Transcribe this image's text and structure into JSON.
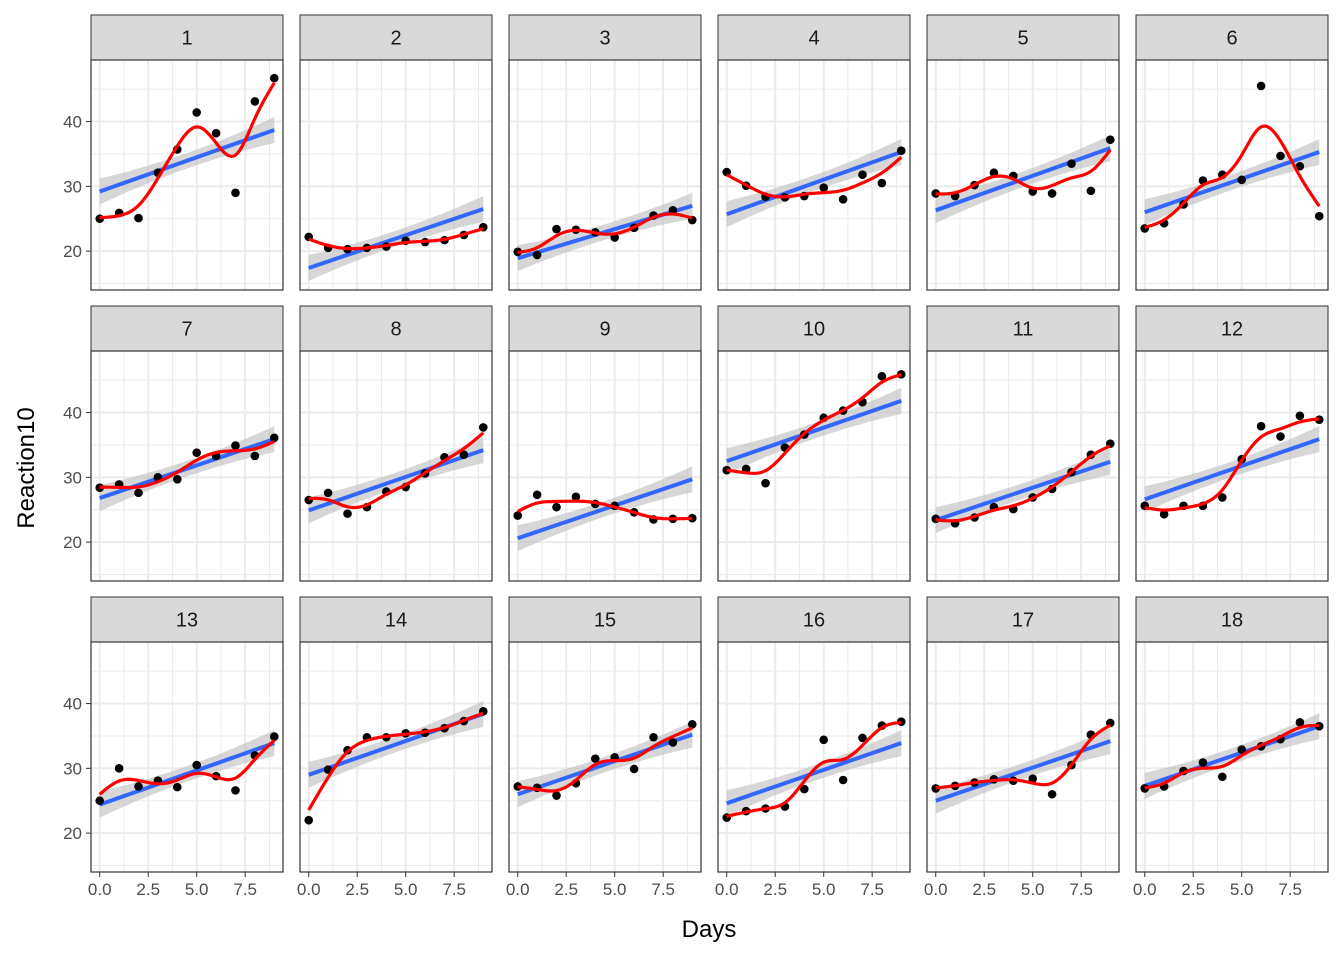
{
  "chart_data": {
    "type": "scatter",
    "xlabel": "Days",
    "ylabel": "Reaction10",
    "xlim": [
      -0.45,
      9.45
    ],
    "ylim": [
      14.0,
      49.5
    ],
    "x_ticks": [
      0,
      2.5,
      5,
      7.5
    ],
    "x_tick_labels": [
      "0.0",
      "2.5",
      "5.0",
      "7.5"
    ],
    "y_ticks": [
      20,
      30,
      40
    ],
    "y_tick_labels": [
      "20",
      "30",
      "40"
    ],
    "grid": true,
    "layout": {
      "rows": 3,
      "cols": 6
    },
    "colors": {
      "points": "#000000",
      "linear_fit": "#3366ff",
      "confidence_band": "#bdbdbd",
      "smooth_fit": "#ff0000",
      "strip_fill": "#d9d9d9",
      "grid": "#ebebeb",
      "panel_border": "#333333"
    },
    "days": [
      0,
      1,
      2,
      3,
      4,
      5,
      6,
      7,
      8,
      9
    ],
    "panels": [
      {
        "label": "1",
        "values": [
          25.0,
          25.9,
          25.1,
          32.1,
          35.7,
          41.4,
          38.2,
          29.0,
          43.1,
          46.7
        ],
        "fit": [
          29.2,
          38.7
        ]
      },
      {
        "label": "2",
        "values": [
          22.2,
          20.5,
          20.3,
          20.5,
          20.7,
          21.6,
          21.4,
          21.7,
          22.5,
          23.7
        ],
        "fit": [
          17.4,
          26.5
        ]
      },
      {
        "label": "3",
        "values": [
          19.9,
          19.4,
          23.4,
          23.3,
          22.9,
          22.1,
          23.6,
          25.5,
          26.3,
          24.8
        ],
        "fit": [
          18.9,
          27.0
        ]
      },
      {
        "label": "4",
        "values": [
          32.2,
          30.1,
          28.4,
          28.3,
          28.5,
          29.8,
          28.0,
          31.8,
          30.5,
          35.5
        ],
        "fit": [
          25.7,
          35.3
        ]
      },
      {
        "label": "5",
        "values": [
          28.9,
          28.5,
          30.2,
          32.1,
          31.6,
          29.2,
          28.9,
          33.5,
          29.3,
          37.2
        ],
        "fit": [
          26.3,
          35.9
        ]
      },
      {
        "label": "6",
        "values": [
          23.5,
          24.3,
          27.2,
          30.9,
          31.8,
          31.0,
          45.5,
          34.7,
          33.1,
          25.4
        ],
        "fit": [
          26.0,
          35.3
        ]
      },
      {
        "label": "7",
        "values": [
          28.4,
          28.9,
          27.6,
          30.0,
          29.7,
          33.8,
          33.3,
          34.9,
          33.3,
          36.1
        ],
        "fit": [
          26.8,
          35.9
        ]
      },
      {
        "label": "8",
        "values": [
          26.5,
          27.6,
          24.4,
          25.4,
          27.8,
          28.5,
          30.6,
          33.1,
          33.5,
          37.7
        ],
        "fit": [
          24.9,
          34.2
        ]
      },
      {
        "label": "9",
        "values": [
          24.1,
          27.3,
          25.4,
          27.0,
          25.9,
          25.6,
          24.6,
          23.5,
          23.6,
          23.7
        ],
        "fit": [
          20.6,
          29.7
        ]
      },
      {
        "label": "10",
        "values": [
          31.1,
          31.3,
          29.1,
          34.6,
          36.6,
          39.2,
          40.3,
          41.6,
          45.6,
          45.9
        ],
        "fit": [
          32.5,
          41.8
        ]
      },
      {
        "label": "11",
        "values": [
          23.6,
          22.9,
          23.8,
          25.4,
          25.1,
          26.9,
          28.2,
          30.8,
          33.5,
          35.2
        ],
        "fit": [
          23.4,
          32.4
        ]
      },
      {
        "label": "12",
        "values": [
          25.6,
          24.3,
          25.6,
          25.6,
          26.9,
          32.8,
          37.9,
          36.3,
          39.5,
          38.9
        ],
        "fit": [
          26.6,
          35.9
        ]
      },
      {
        "label": "13",
        "values": [
          25.0,
          30.0,
          27.2,
          28.1,
          27.1,
          30.5,
          28.8,
          26.6,
          32.0,
          34.9
        ],
        "fit": [
          24.4,
          33.9
        ]
      },
      {
        "label": "14",
        "values": [
          22.0,
          29.8,
          32.8,
          34.8,
          34.8,
          35.4,
          35.5,
          36.2,
          37.3,
          38.8
        ],
        "fit": [
          29.0,
          38.4
        ]
      },
      {
        "label": "15",
        "values": [
          27.2,
          27.0,
          25.8,
          27.7,
          31.5,
          31.7,
          29.9,
          34.8,
          34.0,
          36.8
        ],
        "fit": [
          26.0,
          35.2
        ]
      },
      {
        "label": "16",
        "values": [
          22.4,
          23.4,
          23.8,
          24.1,
          26.8,
          34.4,
          28.2,
          34.7,
          36.6,
          37.2
        ],
        "fit": [
          24.6,
          33.9
        ]
      },
      {
        "label": "17",
        "values": [
          26.9,
          27.3,
          27.8,
          28.3,
          28.1,
          28.4,
          26.0,
          30.5,
          35.2,
          37.0
        ],
        "fit": [
          25.0,
          34.2
        ]
      },
      {
        "label": "18",
        "values": [
          26.9,
          27.2,
          29.6,
          30.9,
          28.7,
          32.9,
          33.4,
          34.5,
          37.1,
          36.5
        ],
        "fit": [
          27.3,
          36.5
        ]
      }
    ]
  }
}
